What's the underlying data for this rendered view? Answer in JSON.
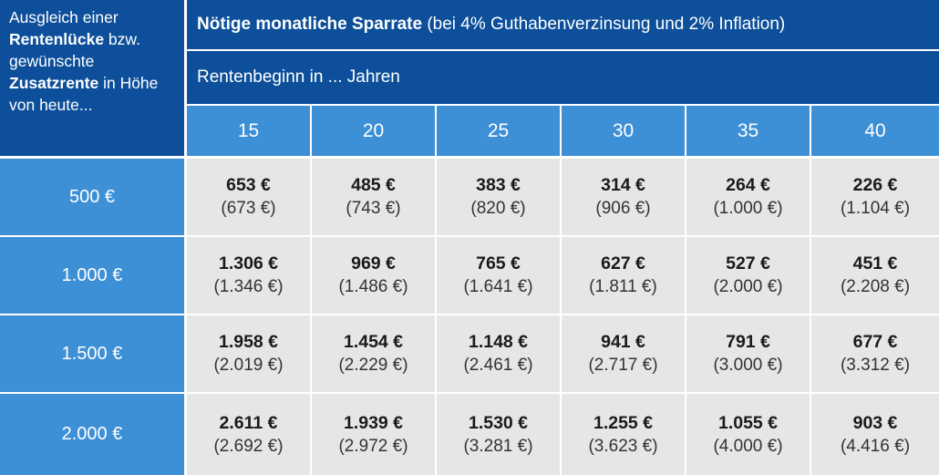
{
  "corner": {
    "line1": "Ausgleich einer",
    "line2_bold": "Rentenlücke",
    "line2_rest": " bzw.",
    "line3": "gewünschte",
    "line4_bold": "Zusatzrente",
    "line4_rest": " in Höhe",
    "line5": "von heute..."
  },
  "header": {
    "title_bold": "Nötige monatliche Sparrate",
    "title_rest": "(bei 4% Guthabenverzinsung und 2% Inflation)",
    "subtitle": "Rentenbeginn in ... Jahren"
  },
  "years": [
    "15",
    "20",
    "25",
    "30",
    "35",
    "40"
  ],
  "rows": [
    {
      "amount": "500 €",
      "values": [
        {
          "main": "653 €",
          "alt": "(673 €)"
        },
        {
          "main": "485 €",
          "alt": "(743 €)"
        },
        {
          "main": "383 €",
          "alt": "(820 €)"
        },
        {
          "main": "314 €",
          "alt": "(906 €)"
        },
        {
          "main": "264 €",
          "alt": "(1.000 €)"
        },
        {
          "main": "226 €",
          "alt": "(1.104 €)"
        }
      ]
    },
    {
      "amount": "1.000 €",
      "values": [
        {
          "main": "1.306 €",
          "alt": "(1.346 €)"
        },
        {
          "main": "969 €",
          "alt": "(1.486 €)"
        },
        {
          "main": "765 €",
          "alt": "(1.641 €)"
        },
        {
          "main": "627 €",
          "alt": "(1.811 €)"
        },
        {
          "main": "527 €",
          "alt": "(2.000 €)"
        },
        {
          "main": "451 €",
          "alt": "(2.208 €)"
        }
      ]
    },
    {
      "amount": "1.500 €",
      "values": [
        {
          "main": "1.958 €",
          "alt": "(2.019 €)"
        },
        {
          "main": "1.454 €",
          "alt": "(2.229 €)"
        },
        {
          "main": "1.148 €",
          "alt": "(2.461 €)"
        },
        {
          "main": "941 €",
          "alt": "(2.717 €)"
        },
        {
          "main": "791 €",
          "alt": "(3.000 €)"
        },
        {
          "main": "677 €",
          "alt": "(3.312 €)"
        }
      ]
    },
    {
      "amount": "2.000 €",
      "values": [
        {
          "main": "2.611 €",
          "alt": "(2.692 €)"
        },
        {
          "main": "1.939 €",
          "alt": "(2.972 €)"
        },
        {
          "main": "1.530 €",
          "alt": "(3.281 €)"
        },
        {
          "main": "1.255 €",
          "alt": "(3.623 €)"
        },
        {
          "main": "1.055 €",
          "alt": "(4.000 €)"
        },
        {
          "main": "903 €",
          "alt": "(4.416 €)"
        }
      ]
    }
  ],
  "colors": {
    "dark_blue": "#0d4f9a",
    "light_blue": "#3d8fd6",
    "cell_gray": "#e6e6e6"
  }
}
